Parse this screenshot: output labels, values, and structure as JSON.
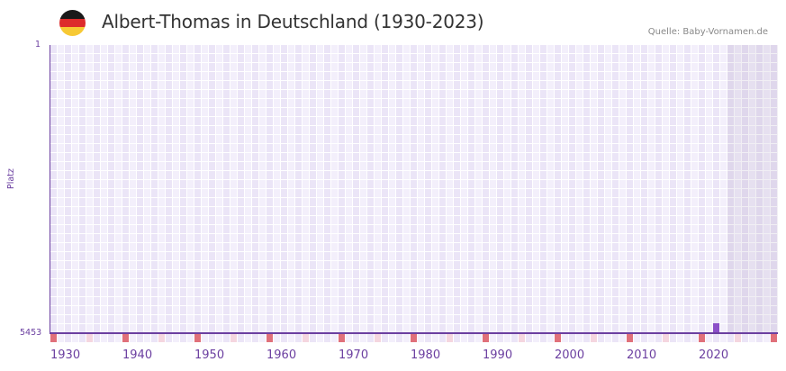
{
  "header": {
    "title": "Albert-Thomas in Deutschland (1930-2023)",
    "source": "Quelle: Baby-Vornamen.de",
    "flag_colors": [
      "#1a1a1a",
      "#dd2b2b",
      "#f7c934"
    ]
  },
  "colors": {
    "axis": "#6b3fa0",
    "bar": "#8b4fc8",
    "grid_light": "#f3effb",
    "grid_dark": "#ebe5f7",
    "decade_marker": "#e0707a",
    "half_decade_marker": "#f5d6df"
  },
  "chart_data": {
    "type": "bar",
    "title": "Albert-Thomas in Deutschland (1930-2023)",
    "xlabel": "",
    "ylabel": "Platz",
    "y_inverted": true,
    "ylim": [
      5453,
      1
    ],
    "yticks": [
      "1",
      "5453"
    ],
    "xticks": [
      "1930",
      "1940",
      "1950",
      "1960",
      "1970",
      "1980",
      "1990",
      "2000",
      "2010",
      "2020"
    ],
    "x_range": [
      1930,
      2030
    ],
    "future_shaded_from": 2024,
    "grid": true,
    "categories": [
      2022
    ],
    "series": [
      {
        "name": "Platz",
        "values": [
          5453
        ]
      }
    ],
    "annotations": [],
    "source": "Quelle: Baby-Vornamen.de"
  },
  "axes": {
    "y_top": "1",
    "y_bottom": "5453",
    "y_label": "Platz",
    "x_labels": [
      "1930",
      "1940",
      "1950",
      "1960",
      "1970",
      "1980",
      "1990",
      "2000",
      "2010",
      "2020"
    ]
  }
}
